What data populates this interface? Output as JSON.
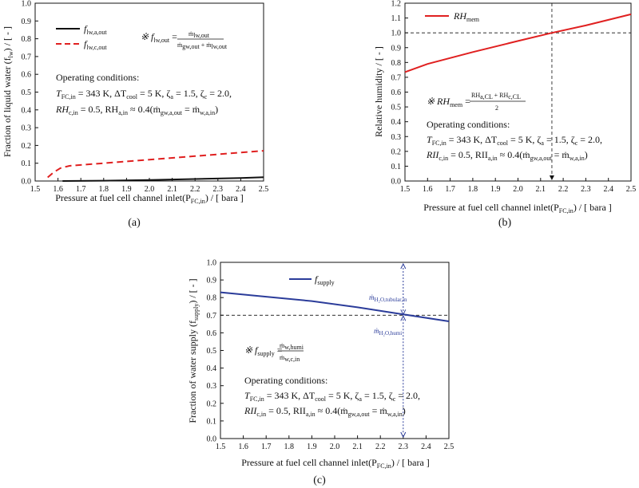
{
  "chart_data": [
    {
      "type": "line",
      "caption": "(a)",
      "xlabel": "Pressure at fuel cell channel inlet(P",
      "xlabel_sub": "FC,in",
      "xlabel_tail": ") / [ bara ]",
      "ylabel": "Fraction of liquid water (f",
      "ylabel_sub": "lw",
      "ylabel_tail": ") / [ - ]",
      "xlim": [
        1.5,
        2.5
      ],
      "ylim": [
        0.0,
        1.0
      ],
      "x_ticks": [
        "1.5",
        "1.6",
        "1.7",
        "1.8",
        "1.9",
        "2.0",
        "2.1",
        "2.2",
        "2.3",
        "2.4",
        "2.5"
      ],
      "y_ticks": [
        "0.0",
        "0.1",
        "0.2",
        "0.3",
        "0.4",
        "0.5",
        "0.6",
        "0.7",
        "0.8",
        "0.9",
        "1.0"
      ],
      "series": [
        {
          "name": "f",
          "name_sub": "lw,a,out",
          "color": "#111111",
          "dash": false,
          "points": [
            [
              1.62,
              0.0
            ],
            [
              1.8,
              0.002
            ],
            [
              2.0,
              0.006
            ],
            [
              2.2,
              0.011
            ],
            [
              2.4,
              0.017
            ],
            [
              2.5,
              0.021
            ]
          ]
        },
        {
          "name": "f",
          "name_sub": "lw,c,out",
          "color": "#e02020",
          "dash": true,
          "points": [
            [
              1.555,
              0.02
            ],
            [
              1.58,
              0.048
            ],
            [
              1.61,
              0.072
            ],
            [
              1.65,
              0.085
            ],
            [
              1.8,
              0.1
            ],
            [
              2.0,
              0.12
            ],
            [
              2.2,
              0.14
            ],
            [
              2.4,
              0.16
            ],
            [
              2.5,
              0.17
            ]
          ]
        }
      ],
      "formula": {
        "lead": "※ f",
        "lead_sub": "lw,out",
        "eq": " = ",
        "num": "ṁ",
        "num_sub": "lw,out",
        "den": "ṁ",
        "den_sub": "gw,out",
        "den_mid": " + ṁ",
        "den_sub2": "lw,out"
      },
      "conditions": {
        "title": "Operating conditions:",
        "line1": "T",
        "line1_sub": "FC,in",
        "line1_rest": " = 343 K, ΔT",
        "line1_sub2": "cool",
        "line1_rest2": " = 5 K, ζ",
        "line1_sub3": "a",
        "line1_rest3": " = 1.5, ζ",
        "line1_sub4": "c",
        "line1_rest4": " = 2.0,",
        "line2": "RH",
        "line2_sub": "c,in",
        "line2_rest": " = 0.5, RH",
        "line2_sub2": "a,in",
        "line2_rest2": " ≈ 0.4(ṁ",
        "line2_sub3": "gw,a,out",
        "line2_rest3": " = ṁ",
        "line2_sub4": "w,a,in",
        "line2_rest4": ")"
      }
    },
    {
      "type": "line",
      "caption": "(b)",
      "xlabel": "Pressure at fuel cell channel inlet(P",
      "xlabel_sub": "FC,in",
      "xlabel_tail": ") / [ bara ]",
      "ylabel": "Relative humidity / [ - ]",
      "xlim": [
        1.5,
        2.5
      ],
      "ylim": [
        0.0,
        1.2
      ],
      "x_ticks": [
        "1.5",
        "1.6",
        "1.7",
        "1.8",
        "1.9",
        "2.0",
        "2.1",
        "2.2",
        "2.3",
        "2.4",
        "2.5"
      ],
      "y_ticks": [
        "0.0",
        "0.1",
        "0.2",
        "0.3",
        "0.4",
        "0.5",
        "0.6",
        "0.7",
        "0.8",
        "0.9",
        "1.0",
        "1.1",
        "1.2"
      ],
      "series": [
        {
          "name": "RH",
          "name_sub": "mem",
          "color": "#e02020",
          "dash": false,
          "points": [
            [
              1.5,
              0.735
            ],
            [
              1.6,
              0.79
            ],
            [
              1.8,
              0.87
            ],
            [
              2.0,
              0.945
            ],
            [
              2.15,
              1.0
            ],
            [
              2.3,
              1.05
            ],
            [
              2.5,
              1.125
            ]
          ]
        }
      ],
      "reference": {
        "y": 1.0,
        "x": 2.15
      },
      "formula": {
        "lead": "※ RH",
        "lead_sub": "mem",
        "eq": " = ",
        "num": "RH",
        "num_sub": "a,CL",
        "num_mid": " + RH",
        "num_sub2": "c,CL",
        "den": "2"
      },
      "conditions": {
        "title": "Operating conditions:",
        "line1": "T",
        "line1_sub": "FC,in",
        "line1_rest": " = 343 K, ΔT",
        "line1_sub2": "cool",
        "line1_rest2": " = 5 K, ζ",
        "line1_sub3": "a",
        "line1_rest3": " = 1.5, ζ",
        "line1_sub4": "c",
        "line1_rest4": " = 2.0,",
        "line2": "RII",
        "line2_sub": "c,in",
        "line2_rest": " = 0.5, RII",
        "line2_sub2": "a,in",
        "line2_rest2": " ≈ 0.4(ṁ",
        "line2_sub3": "gw,a,out",
        "line2_rest3": " = ṁ",
        "line2_sub4": "w,a,in",
        "line2_rest4": ")"
      }
    },
    {
      "type": "line",
      "caption": "(c)",
      "xlabel": "Pressure at fuel cell channel inlet(P",
      "xlabel_sub": "FC,in",
      "xlabel_tail": ") / [ bara ]",
      "ylabel": "Fraction of water supply (f",
      "ylabel_sub": "supply",
      "ylabel_tail": ") / [ - ]",
      "xlim": [
        1.5,
        2.5
      ],
      "ylim": [
        0.0,
        1.0
      ],
      "x_ticks": [
        "1.5",
        "1.6",
        "1.7",
        "1.8",
        "1.9",
        "2.0",
        "2.1",
        "2.2",
        "2.3",
        "2.4",
        "2.5"
      ],
      "y_ticks": [
        "0.0",
        "0.1",
        "0.2",
        "0.3",
        "0.4",
        "0.5",
        "0.6",
        "0.7",
        "0.8",
        "0.9",
        "1.0"
      ],
      "series": [
        {
          "name": "f",
          "name_sub": "supply",
          "color": "#2b3c9a",
          "dash": false,
          "points": [
            [
              1.5,
              0.83
            ],
            [
              1.7,
              0.805
            ],
            [
              1.9,
              0.78
            ],
            [
              2.1,
              0.745
            ],
            [
              2.3,
              0.705
            ],
            [
              2.5,
              0.665
            ]
          ]
        }
      ],
      "reference": {
        "y": 0.7,
        "x": 2.3
      },
      "notes": [
        {
          "text": "ṁ",
          "sub": "H₂O,tubular,in"
        },
        {
          "text": "ṁ",
          "sub": "H₂O,humi"
        }
      ],
      "formula": {
        "lead": "※ f",
        "lead_sub": "supply",
        "eq": " = ",
        "num": "ṁ",
        "num_sub": "w,humi",
        "den": "ṁ",
        "den_sub": "w,c,in"
      },
      "conditions": {
        "title": "Operating conditions:",
        "line1": "T",
        "line1_sub": "FC,in",
        "line1_rest": " = 343 K, ΔT",
        "line1_sub2": "cool",
        "line1_rest2": " = 5 K, ζ",
        "line1_sub3": "a",
        "line1_rest3": " = 1.5, ζ",
        "line1_sub4": "c",
        "line1_rest4": " = 2.0,",
        "line2": "RII",
        "line2_sub": "c,in",
        "line2_rest": " = 0.5, RII",
        "line2_sub2": "a,in",
        "line2_rest2": " ≈ 0.4(ṁ",
        "line2_sub3": "gw,a,out",
        "line2_rest3": " = ṁ",
        "line2_sub4": "w,a,in",
        "line2_rest4": ")"
      }
    }
  ]
}
